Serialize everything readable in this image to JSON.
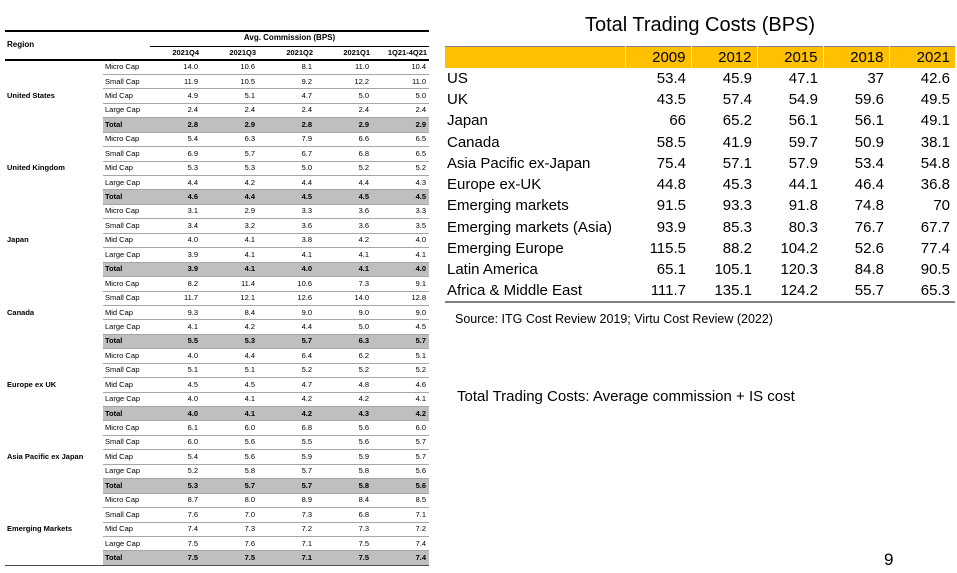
{
  "theme": {
    "header_yellow": "#FFC000",
    "total_row_gray": "#BFBFBF",
    "row_line_gray": "#A6A6A6",
    "table_border_gray": "#808080"
  },
  "commission_table": {
    "region_header": "Region",
    "group_header": "Avg. Commission (BPS)",
    "columns": [
      "2021Q4",
      "2021Q3",
      "2021Q2",
      "2021Q1",
      "1Q21-4Q21"
    ],
    "row_labels": [
      "Micro Cap",
      "Small Cap",
      "Mid Cap",
      "Large Cap",
      "Total"
    ],
    "regions": [
      {
        "name": "United States",
        "rows": [
          [
            "14.0",
            "10.6",
            "8.1",
            "11.0",
            "10.4"
          ],
          [
            "11.9",
            "10.5",
            "9.2",
            "12.2",
            "11.0"
          ],
          [
            "4.9",
            "5.1",
            "4.7",
            "5.0",
            "5.0"
          ],
          [
            "2.4",
            "2.4",
            "2.4",
            "2.4",
            "2.4"
          ],
          [
            "2.8",
            "2.9",
            "2.8",
            "2.9",
            "2.9"
          ]
        ]
      },
      {
        "name": "United Kingdom",
        "rows": [
          [
            "5.4",
            "6.3",
            "7.9",
            "6.6",
            "6.5"
          ],
          [
            "6.9",
            "5.7",
            "6.7",
            "6.8",
            "6.5"
          ],
          [
            "5.3",
            "5.3",
            "5.0",
            "5.2",
            "5.2"
          ],
          [
            "4.4",
            "4.2",
            "4.4",
            "4.4",
            "4.3"
          ],
          [
            "4.6",
            "4.4",
            "4.5",
            "4.5",
            "4.5"
          ]
        ]
      },
      {
        "name": "Japan",
        "rows": [
          [
            "3.1",
            "2.9",
            "3.3",
            "3.6",
            "3.3"
          ],
          [
            "3.4",
            "3.2",
            "3.6",
            "3.6",
            "3.5"
          ],
          [
            "4.0",
            "4.1",
            "3.8",
            "4.2",
            "4.0"
          ],
          [
            "3.9",
            "4.1",
            "4.1",
            "4.1",
            "4.1"
          ],
          [
            "3.9",
            "4.1",
            "4.0",
            "4.1",
            "4.0"
          ]
        ]
      },
      {
        "name": "Canada",
        "rows": [
          [
            "8.2",
            "11.4",
            "10.6",
            "7.3",
            "9.1"
          ],
          [
            "11.7",
            "12.1",
            "12.6",
            "14.0",
            "12.8"
          ],
          [
            "9.3",
            "8.4",
            "9.0",
            "9.0",
            "9.0"
          ],
          [
            "4.1",
            "4.2",
            "4.4",
            "5.0",
            "4.5"
          ],
          [
            "5.5",
            "5.3",
            "5.7",
            "6.3",
            "5.7"
          ]
        ]
      },
      {
        "name": "Europe ex UK",
        "rows": [
          [
            "4.0",
            "4.4",
            "6.4",
            "6.2",
            "5.1"
          ],
          [
            "5.1",
            "5.1",
            "5.2",
            "5.2",
            "5.2"
          ],
          [
            "4.5",
            "4.5",
            "4.7",
            "4.8",
            "4.6"
          ],
          [
            "4.0",
            "4.1",
            "4.2",
            "4.2",
            "4.1"
          ],
          [
            "4.0",
            "4.1",
            "4.2",
            "4.3",
            "4.2"
          ]
        ]
      },
      {
        "name": "Asia Pacific ex Japan",
        "rows": [
          [
            "6.1",
            "6.0",
            "6.8",
            "5.6",
            "6.0"
          ],
          [
            "6.0",
            "5.6",
            "5.5",
            "5.6",
            "5.7"
          ],
          [
            "5.4",
            "5.6",
            "5.9",
            "5.9",
            "5.7"
          ],
          [
            "5.2",
            "5.8",
            "5.7",
            "5.8",
            "5.6"
          ],
          [
            "5.3",
            "5.7",
            "5.7",
            "5.8",
            "5.6"
          ]
        ]
      },
      {
        "name": "Emerging Markets",
        "rows": [
          [
            "8.7",
            "8.0",
            "8.9",
            "8.4",
            "8.5"
          ],
          [
            "7.6",
            "7.0",
            "7.3",
            "6.8",
            "7.1"
          ],
          [
            "7.4",
            "7.3",
            "7.2",
            "7.3",
            "7.2"
          ],
          [
            "7.5",
            "7.6",
            "7.1",
            "7.5",
            "7.4"
          ],
          [
            "7.5",
            "7.5",
            "7.1",
            "7.5",
            "7.4"
          ]
        ]
      }
    ]
  },
  "costs_table": {
    "title": "Total Trading Costs (BPS)",
    "columns": [
      "2009",
      "2012",
      "2015",
      "2018",
      "2021"
    ],
    "rows": [
      {
        "label": "US",
        "values": [
          "53.4",
          "45.9",
          "47.1",
          "37",
          "42.6"
        ]
      },
      {
        "label": "UK",
        "values": [
          "43.5",
          "57.4",
          "54.9",
          "59.6",
          "49.5"
        ]
      },
      {
        "label": "Japan",
        "values": [
          "66",
          "65.2",
          "56.1",
          "56.1",
          "49.1"
        ]
      },
      {
        "label": "Canada",
        "values": [
          "58.5",
          "41.9",
          "59.7",
          "50.9",
          "38.1"
        ]
      },
      {
        "label": "Asia Pacific ex-Japan",
        "values": [
          "75.4",
          "57.1",
          "57.9",
          "53.4",
          "54.8"
        ]
      },
      {
        "label": "Europe ex-UK",
        "values": [
          "44.8",
          "45.3",
          "44.1",
          "46.4",
          "36.8"
        ]
      },
      {
        "label": "Emerging markets",
        "values": [
          "91.5",
          "93.3",
          "91.8",
          "74.8",
          "70"
        ]
      },
      {
        "label": "Emerging markets (Asia)",
        "values": [
          "93.9",
          "85.3",
          "80.3",
          "76.7",
          "67.7"
        ]
      },
      {
        "label": "Emerging Europe",
        "values": [
          "115.5",
          "88.2",
          "104.2",
          "52.6",
          "77.4"
        ]
      },
      {
        "label": "Latin America",
        "values": [
          "65.1",
          "105.1",
          "120.3",
          "84.8",
          "90.5"
        ]
      },
      {
        "label": "Africa & Middle East",
        "values": [
          "111.7",
          "135.1",
          "124.2",
          "55.7",
          "65.3"
        ]
      }
    ],
    "source": "Source: ITG Cost Review 2019; Virtu Cost Review (2022)"
  },
  "note": "Total Trading Costs: Average commission + IS cost",
  "page_number": "9"
}
